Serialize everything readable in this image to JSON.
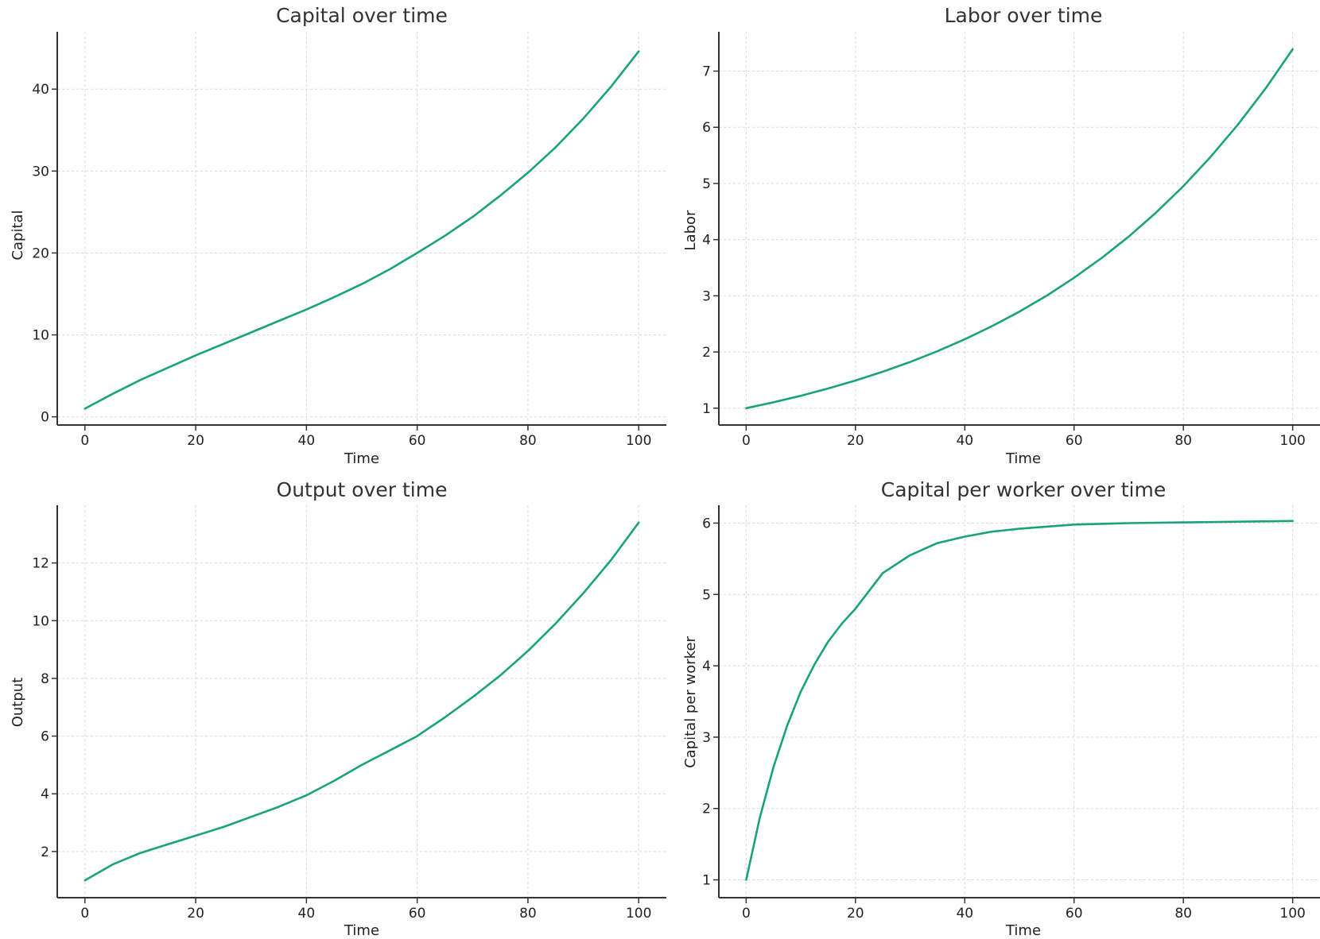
{
  "style": {
    "line_color": "#1aa37a"
  },
  "chart_data": [
    {
      "type": "line",
      "title": "Capital over time",
      "xlabel": "Time",
      "ylabel": "Capital",
      "xlim": [
        -5,
        105
      ],
      "ylim": [
        -1,
        47
      ],
      "xticks": [
        0,
        20,
        40,
        60,
        80,
        100
      ],
      "yticks": [
        0,
        10,
        20,
        30,
        40
      ],
      "grid": true,
      "series": [
        {
          "x": [
            0,
            5,
            10,
            15,
            20,
            25,
            30,
            35,
            40,
            45,
            50,
            55,
            60,
            65,
            70,
            75,
            80,
            85,
            90,
            95,
            100
          ],
          "values": [
            1,
            2.8,
            4.5,
            6.0,
            7.5,
            8.9,
            10.3,
            11.7,
            13.1,
            14.6,
            16.2,
            18.0,
            20.0,
            22.1,
            24.4,
            27.0,
            29.8,
            32.9,
            36.4,
            40.3,
            44.6
          ]
        }
      ]
    },
    {
      "type": "line",
      "title": "Labor over time",
      "xlabel": "Time",
      "ylabel": "Labor",
      "xlim": [
        -5,
        105
      ],
      "ylim": [
        0.7,
        7.7
      ],
      "xticks": [
        0,
        20,
        40,
        60,
        80,
        100
      ],
      "yticks": [
        1,
        2,
        3,
        4,
        5,
        6,
        7
      ],
      "grid": true,
      "series": [
        {
          "x": [
            0,
            5,
            10,
            15,
            20,
            25,
            30,
            35,
            40,
            45,
            50,
            55,
            60,
            65,
            70,
            75,
            80,
            85,
            90,
            95,
            100
          ],
          "values": [
            1.0,
            1.105,
            1.221,
            1.35,
            1.492,
            1.649,
            1.822,
            2.014,
            2.226,
            2.46,
            2.718,
            3.004,
            3.32,
            3.669,
            4.055,
            4.482,
            4.953,
            5.474,
            6.05,
            6.686,
            7.389
          ]
        }
      ]
    },
    {
      "type": "line",
      "title": "Output over time",
      "xlabel": "Time",
      "ylabel": "Output",
      "xlim": [
        -5,
        105
      ],
      "ylim": [
        0.4,
        14.0
      ],
      "xticks": [
        0,
        20,
        40,
        60,
        80,
        100
      ],
      "yticks": [
        2,
        4,
        6,
        8,
        10,
        12
      ],
      "grid": true,
      "series": [
        {
          "x": [
            0,
            5,
            10,
            15,
            20,
            25,
            30,
            35,
            40,
            45,
            50,
            55,
            60,
            65,
            70,
            75,
            80,
            85,
            90,
            95,
            100
          ],
          "values": [
            1.0,
            1.55,
            1.95,
            2.25,
            2.55,
            2.85,
            3.2,
            3.55,
            3.95,
            4.45,
            5.0,
            5.5,
            6.0,
            6.65,
            7.35,
            8.1,
            8.95,
            9.9,
            10.95,
            12.1,
            13.4
          ]
        }
      ]
    },
    {
      "type": "line",
      "title": "Capital per worker over time",
      "xlabel": "Time",
      "ylabel": "Capital per worker",
      "xlim": [
        -5,
        105
      ],
      "ylim": [
        0.75,
        6.25
      ],
      "xticks": [
        0,
        20,
        40,
        60,
        80,
        100
      ],
      "yticks": [
        1,
        2,
        3,
        4,
        5,
        6
      ],
      "grid": true,
      "series": [
        {
          "x": [
            0,
            2.5,
            5,
            7.5,
            10,
            12.5,
            15,
            17.5,
            20,
            25,
            30,
            35,
            40,
            45,
            50,
            60,
            70,
            80,
            90,
            100
          ],
          "values": [
            1.0,
            1.87,
            2.58,
            3.16,
            3.64,
            4.02,
            4.34,
            4.59,
            4.8,
            5.3,
            5.55,
            5.72,
            5.81,
            5.88,
            5.92,
            5.98,
            6.0,
            6.01,
            6.02,
            6.03
          ]
        }
      ]
    }
  ]
}
